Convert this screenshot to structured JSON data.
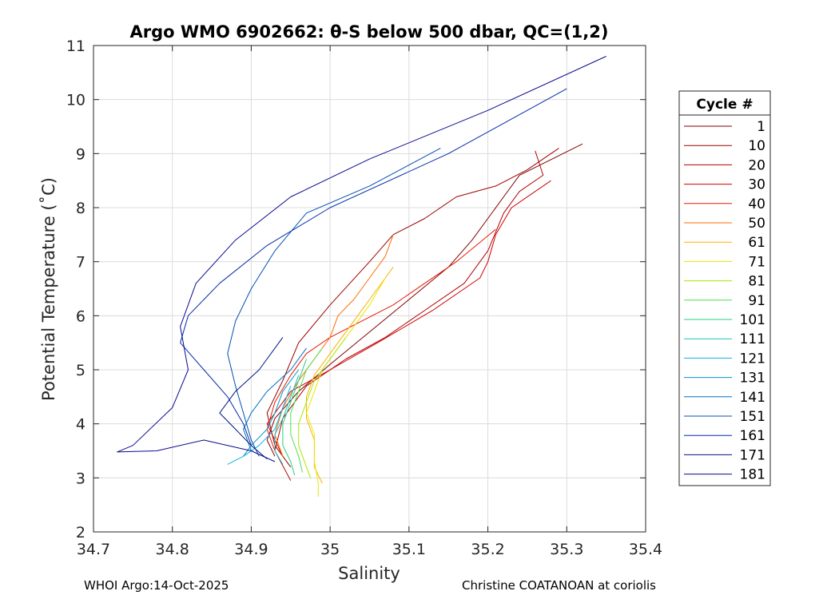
{
  "chart_data": {
    "type": "line",
    "title": "Argo WMO 6902662: θ-S below 500 dbar,  QC=(1,2)",
    "xlabel": "Salinity",
    "ylabel": "Potential Temperature (˚C)",
    "xlim": [
      34.7,
      35.4
    ],
    "ylim": [
      2,
      11
    ],
    "xticks": [
      "34.7",
      "34.8",
      "34.9",
      "35",
      "35.1",
      "35.2",
      "35.3",
      "35.4"
    ],
    "yticks": [
      "2",
      "3",
      "4",
      "5",
      "6",
      "7",
      "8",
      "9",
      "10",
      "11"
    ],
    "grid": true,
    "legend_title": "Cycle #",
    "legend_position": "right",
    "series": [
      {
        "name": "1",
        "color": "#800000",
        "points": [
          [
            35.32,
            9.18
          ],
          [
            35.24,
            8.6
          ],
          [
            35.22,
            8.2
          ],
          [
            35.2,
            7.8
          ],
          [
            35.18,
            7.4
          ],
          [
            35.15,
            6.9
          ],
          [
            35.1,
            6.3
          ],
          [
            35.05,
            5.7
          ],
          [
            35.0,
            5.1
          ],
          [
            34.96,
            4.6
          ],
          [
            34.93,
            4.1
          ],
          [
            34.92,
            3.7
          ],
          [
            34.93,
            3.4
          ]
        ]
      },
      {
        "name": "10",
        "color": "#9c0000",
        "points": [
          [
            35.29,
            9.1
          ],
          [
            35.25,
            8.7
          ],
          [
            35.21,
            8.4
          ],
          [
            35.16,
            8.2
          ],
          [
            35.12,
            7.8
          ],
          [
            35.08,
            7.5
          ],
          [
            35.05,
            7.0
          ],
          [
            35.0,
            6.2
          ],
          [
            34.96,
            5.5
          ],
          [
            34.94,
            4.8
          ],
          [
            34.92,
            4.2
          ],
          [
            34.93,
            3.6
          ],
          [
            34.95,
            3.2
          ]
        ]
      },
      {
        "name": "20",
        "color": "#b40000",
        "points": [
          [
            35.26,
            9.05
          ],
          [
            35.27,
            8.6
          ],
          [
            35.24,
            8.3
          ],
          [
            35.22,
            7.9
          ],
          [
            35.2,
            7.2
          ],
          [
            35.17,
            6.6
          ],
          [
            35.12,
            6.1
          ],
          [
            35.07,
            5.6
          ],
          [
            35.02,
            5.2
          ],
          [
            34.97,
            4.7
          ],
          [
            34.94,
            4.1
          ],
          [
            34.93,
            3.5
          ],
          [
            34.95,
            2.95
          ]
        ]
      },
      {
        "name": "30",
        "color": "#d00000",
        "points": [
          [
            35.28,
            8.5
          ],
          [
            35.23,
            8.0
          ],
          [
            35.21,
            7.5
          ],
          [
            35.2,
            7.0
          ],
          [
            35.19,
            6.7
          ],
          [
            35.13,
            6.1
          ],
          [
            35.06,
            5.5
          ],
          [
            35.0,
            5.0
          ],
          [
            34.95,
            4.6
          ],
          [
            34.92,
            4.0
          ],
          [
            34.94,
            3.4
          ]
        ]
      },
      {
        "name": "40",
        "color": "#e81800",
        "points": [
          [
            35.21,
            7.6
          ],
          [
            35.16,
            7.0
          ],
          [
            35.12,
            6.6
          ],
          [
            35.08,
            6.2
          ],
          [
            35.04,
            5.9
          ],
          [
            35.0,
            5.6
          ],
          [
            34.97,
            5.3
          ],
          [
            34.95,
            4.9
          ],
          [
            34.93,
            4.4
          ],
          [
            34.92,
            3.9
          ],
          [
            34.93,
            3.5
          ]
        ]
      },
      {
        "name": "50",
        "color": "#ff6a00",
        "points": [
          [
            35.08,
            7.5
          ],
          [
            35.07,
            7.1
          ],
          [
            35.05,
            6.7
          ],
          [
            35.03,
            6.3
          ],
          [
            35.01,
            6.0
          ],
          [
            35.0,
            5.6
          ],
          [
            34.98,
            5.2
          ],
          [
            34.96,
            4.8
          ],
          [
            34.94,
            4.3
          ],
          [
            34.93,
            3.8
          ],
          [
            34.94,
            3.4
          ]
        ]
      },
      {
        "name": "61",
        "color": "#ffb000",
        "points": [
          [
            35.08,
            6.9
          ],
          [
            35.06,
            6.5
          ],
          [
            35.04,
            6.1
          ],
          [
            35.02,
            5.7
          ],
          [
            35.0,
            5.3
          ],
          [
            34.98,
            4.9
          ],
          [
            34.97,
            4.5
          ],
          [
            34.97,
            4.1
          ],
          [
            34.98,
            3.7
          ],
          [
            34.98,
            3.2
          ],
          [
            34.99,
            2.9
          ]
        ]
      },
      {
        "name": "71",
        "color": "#e8e800",
        "points": [
          [
            35.07,
            6.7
          ],
          [
            35.05,
            6.2
          ],
          [
            35.03,
            5.8
          ],
          [
            35.01,
            5.4
          ],
          [
            34.99,
            5.0
          ],
          [
            34.98,
            4.6
          ],
          [
            34.97,
            4.2
          ],
          [
            34.98,
            3.8
          ],
          [
            34.98,
            3.3
          ],
          [
            34.985,
            2.9
          ],
          [
            34.985,
            2.65
          ]
        ]
      },
      {
        "name": "81",
        "color": "#a8e800",
        "points": [
          [
            35.02,
            5.6
          ],
          [
            35.0,
            5.2
          ],
          [
            34.98,
            4.8
          ],
          [
            34.97,
            4.4
          ],
          [
            34.96,
            4.0
          ],
          [
            34.96,
            3.6
          ],
          [
            34.97,
            3.2
          ],
          [
            34.975,
            3.0
          ]
        ]
      },
      {
        "name": "91",
        "color": "#50e050",
        "points": [
          [
            34.99,
            5.4
          ],
          [
            34.97,
            5.0
          ],
          [
            34.96,
            4.6
          ],
          [
            34.95,
            4.2
          ],
          [
            34.95,
            3.8
          ],
          [
            34.96,
            3.4
          ],
          [
            34.965,
            3.1
          ]
        ]
      },
      {
        "name": "101",
        "color": "#20d080",
        "points": [
          [
            34.97,
            5.2
          ],
          [
            34.96,
            4.8
          ],
          [
            34.95,
            4.4
          ],
          [
            34.94,
            4.0
          ],
          [
            34.94,
            3.6
          ],
          [
            34.95,
            3.3
          ],
          [
            34.955,
            3.05
          ]
        ]
      },
      {
        "name": "111",
        "color": "#20c0c0",
        "points": [
          [
            34.96,
            4.9
          ],
          [
            34.95,
            4.5
          ],
          [
            34.94,
            4.1
          ],
          [
            34.93,
            3.8
          ],
          [
            34.93,
            3.5
          ],
          [
            34.94,
            3.25
          ]
        ]
      },
      {
        "name": "121",
        "color": "#10b0e8",
        "points": [
          [
            34.95,
            4.7
          ],
          [
            34.94,
            4.3
          ],
          [
            34.93,
            3.9
          ],
          [
            34.91,
            3.6
          ],
          [
            34.89,
            3.4
          ],
          [
            34.87,
            3.25
          ]
        ]
      },
      {
        "name": "131",
        "color": "#0098c8",
        "points": [
          [
            34.96,
            5.0
          ],
          [
            34.94,
            4.6
          ],
          [
            34.93,
            4.2
          ],
          [
            34.92,
            3.9
          ],
          [
            34.9,
            3.6
          ],
          [
            34.89,
            3.4
          ]
        ]
      },
      {
        "name": "141",
        "color": "#0070c0",
        "points": [
          [
            34.97,
            5.4
          ],
          [
            34.95,
            5.0
          ],
          [
            34.92,
            4.6
          ],
          [
            34.9,
            4.2
          ],
          [
            34.89,
            3.9
          ],
          [
            34.9,
            3.5
          ]
        ]
      },
      {
        "name": "151",
        "color": "#0050b0",
        "points": [
          [
            35.14,
            9.1
          ],
          [
            35.05,
            8.4
          ],
          [
            34.97,
            7.9
          ],
          [
            34.93,
            7.2
          ],
          [
            34.9,
            6.5
          ],
          [
            34.88,
            5.9
          ],
          [
            34.87,
            5.3
          ],
          [
            34.88,
            4.7
          ],
          [
            34.89,
            4.2
          ],
          [
            34.9,
            3.7
          ],
          [
            34.91,
            3.4
          ]
        ]
      },
      {
        "name": "161",
        "color": "#002ca8",
        "points": [
          [
            35.3,
            10.2
          ],
          [
            35.15,
            9.0
          ],
          [
            35.0,
            8.0
          ],
          [
            34.92,
            7.3
          ],
          [
            34.86,
            6.6
          ],
          [
            34.82,
            6.0
          ],
          [
            34.81,
            5.5
          ],
          [
            34.84,
            5.0
          ],
          [
            34.87,
            4.5
          ],
          [
            34.89,
            4.0
          ],
          [
            34.9,
            3.6
          ]
        ]
      },
      {
        "name": "171",
        "color": "#001480",
        "points": [
          [
            34.94,
            5.6
          ],
          [
            34.91,
            5.0
          ],
          [
            34.88,
            4.6
          ],
          [
            34.86,
            4.2
          ],
          [
            34.88,
            3.9
          ],
          [
            34.9,
            3.6
          ],
          [
            34.92,
            3.35
          ]
        ]
      },
      {
        "name": "181",
        "color": "#0a0a90",
        "points": [
          [
            35.35,
            10.8
          ],
          [
            35.2,
            9.8
          ],
          [
            35.05,
            8.9
          ],
          [
            34.95,
            8.2
          ],
          [
            34.88,
            7.4
          ],
          [
            34.83,
            6.6
          ],
          [
            34.81,
            5.8
          ],
          [
            34.82,
            5.0
          ],
          [
            34.8,
            4.3
          ],
          [
            34.75,
            3.6
          ],
          [
            34.73,
            3.48
          ],
          [
            34.78,
            3.5
          ],
          [
            34.84,
            3.7
          ],
          [
            34.9,
            3.5
          ],
          [
            34.93,
            3.3
          ]
        ]
      }
    ]
  },
  "footer": {
    "left": "WHOI Argo:14-Oct-2025",
    "right": "Christine COATANOAN at coriolis"
  }
}
